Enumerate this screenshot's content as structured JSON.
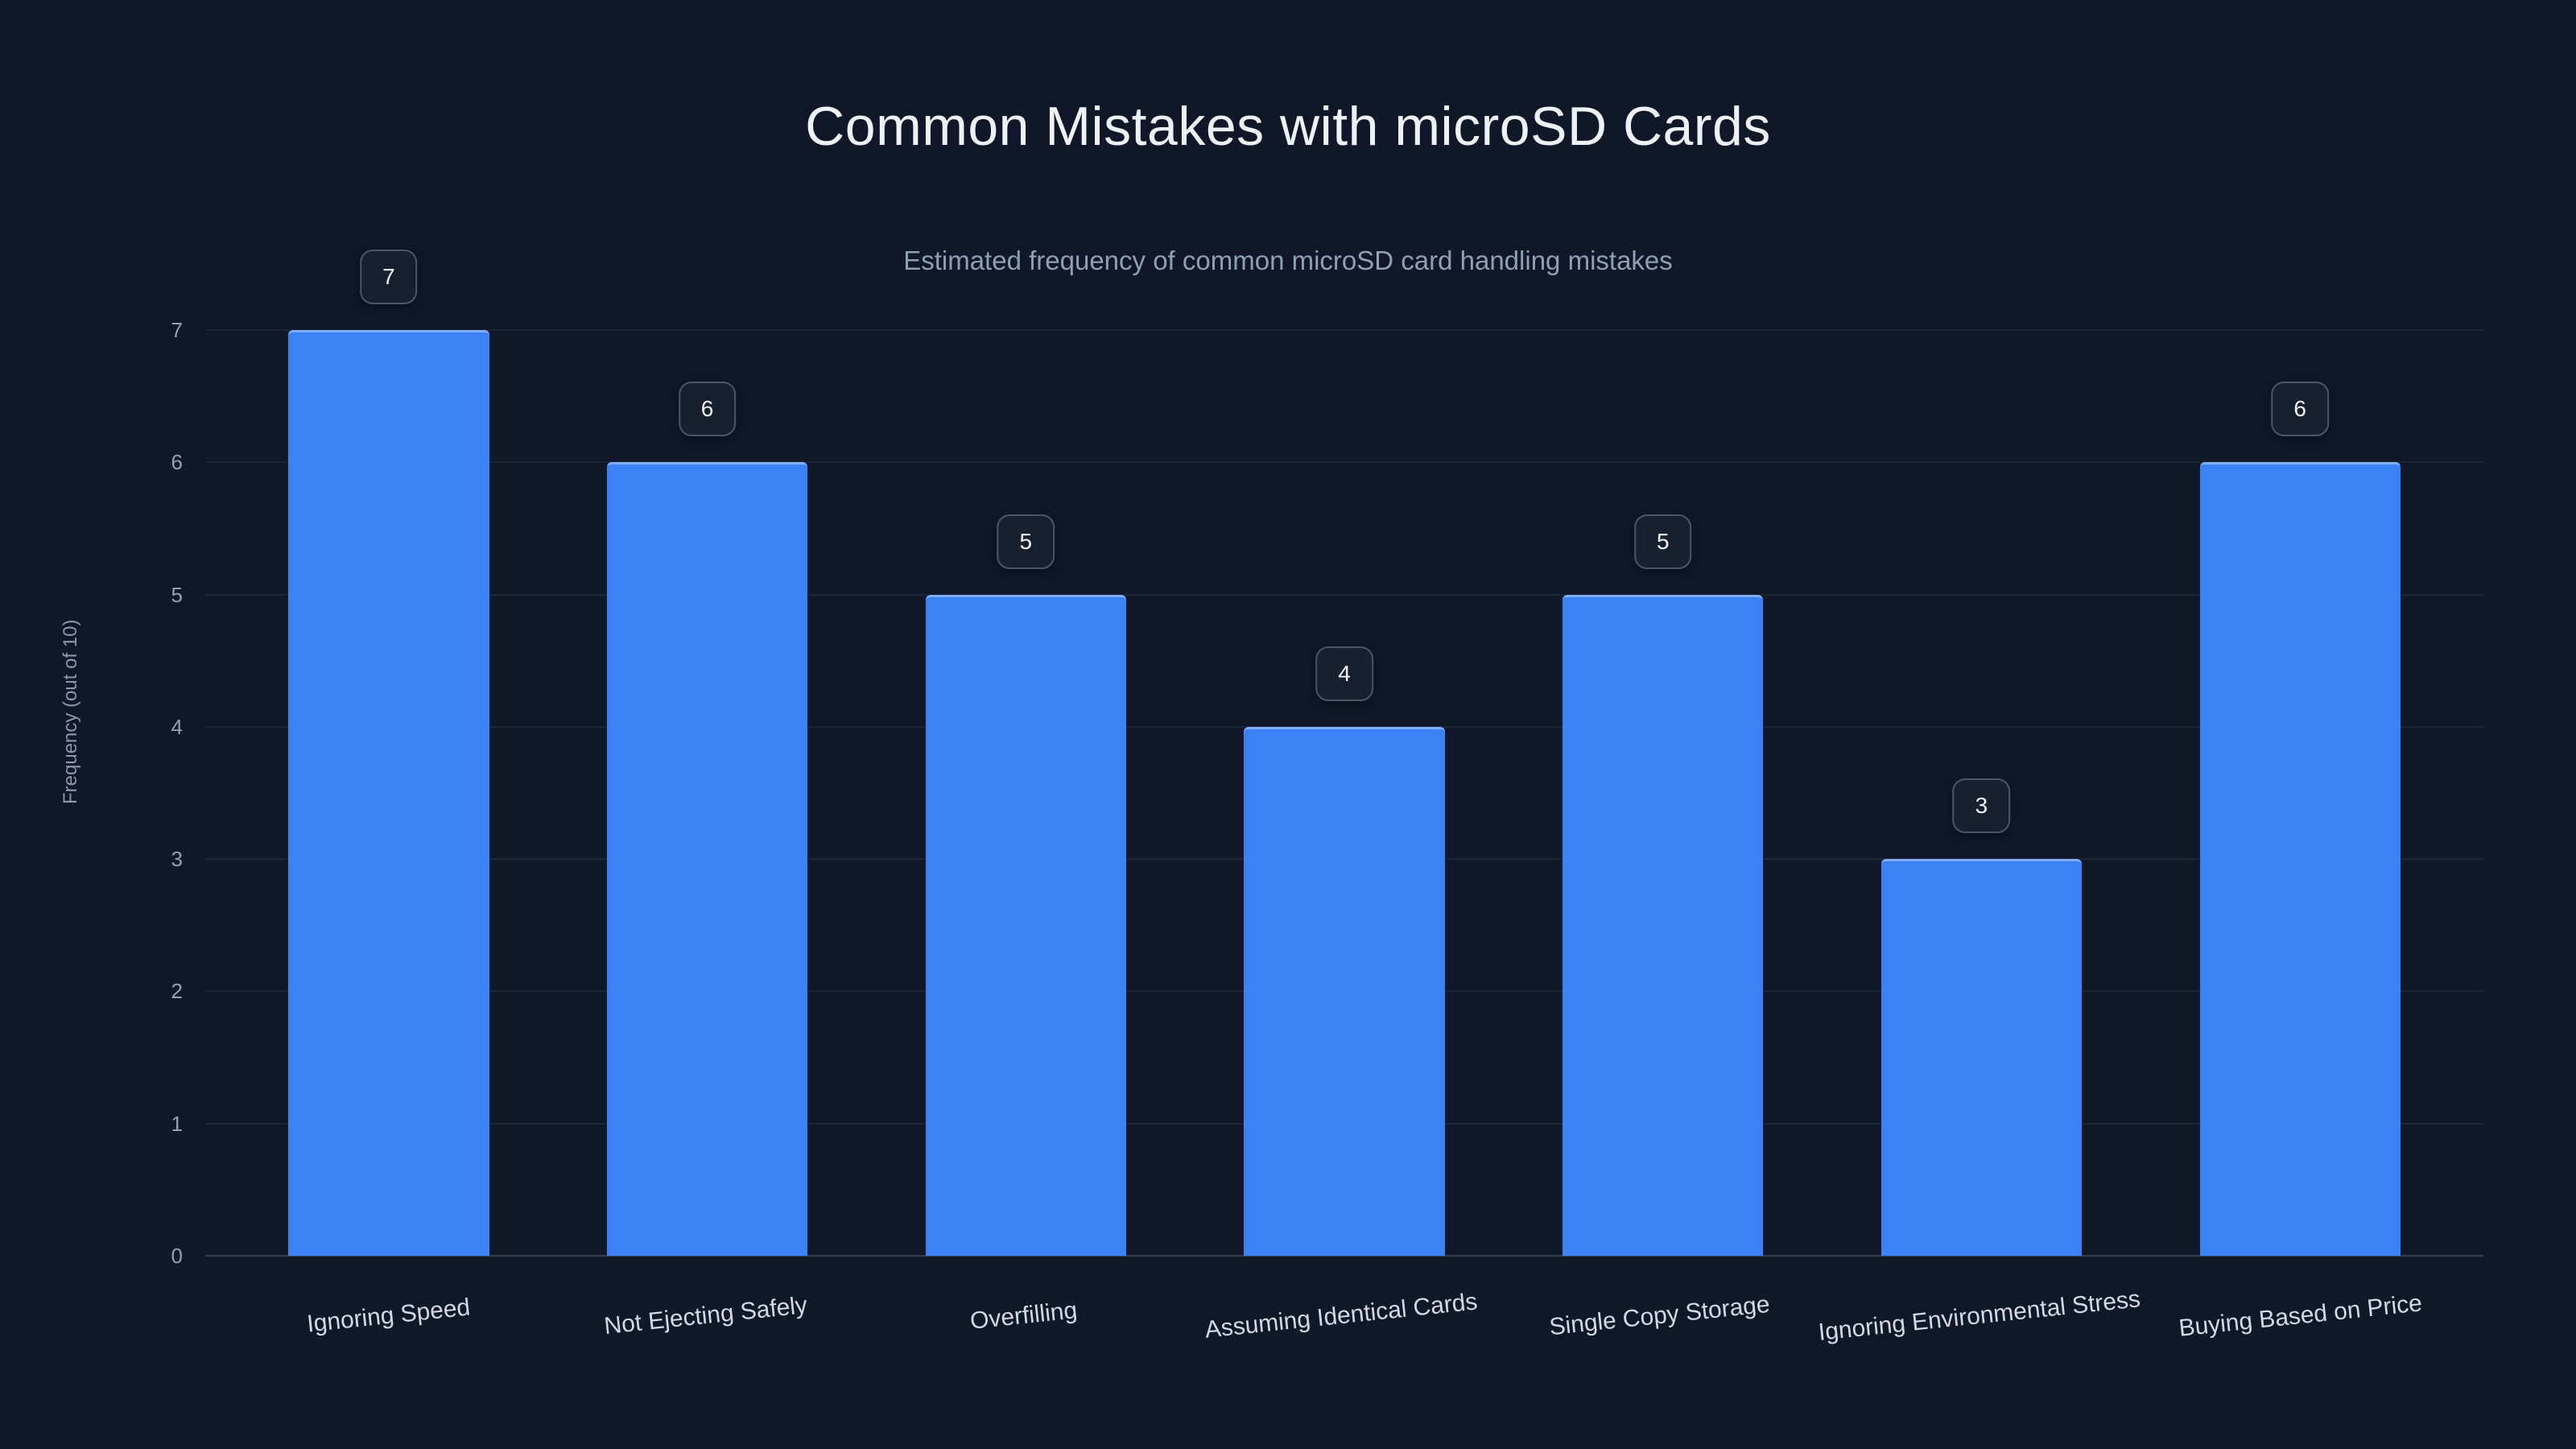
{
  "chart_data": {
    "type": "bar",
    "title": "Common Mistakes with microSD Cards",
    "subtitle": "Estimated frequency of common microSD card handling mistakes",
    "categories": [
      "Ignoring Speed",
      "Not Ejecting Safely",
      "Overfilling",
      "Assuming Identical Cards",
      "Single Copy Storage",
      "Ignoring Environmental Stress",
      "Buying Based on Price"
    ],
    "values": [
      7,
      6,
      5,
      4,
      5,
      3,
      6
    ],
    "xlabel": "",
    "ylabel": "Frequency (out of 10)",
    "ylim": [
      0,
      7
    ],
    "yticks": [
      0,
      1,
      2,
      3,
      4,
      5,
      6,
      7
    ],
    "grid": true,
    "legend": "none",
    "bar_color": "#3b82f6",
    "background_color": "#0f1728",
    "badge_background": "#18202f",
    "badge_border": "#4b5567",
    "title_color": "#eef2f7",
    "subtitle_color": "#8da0b5"
  }
}
